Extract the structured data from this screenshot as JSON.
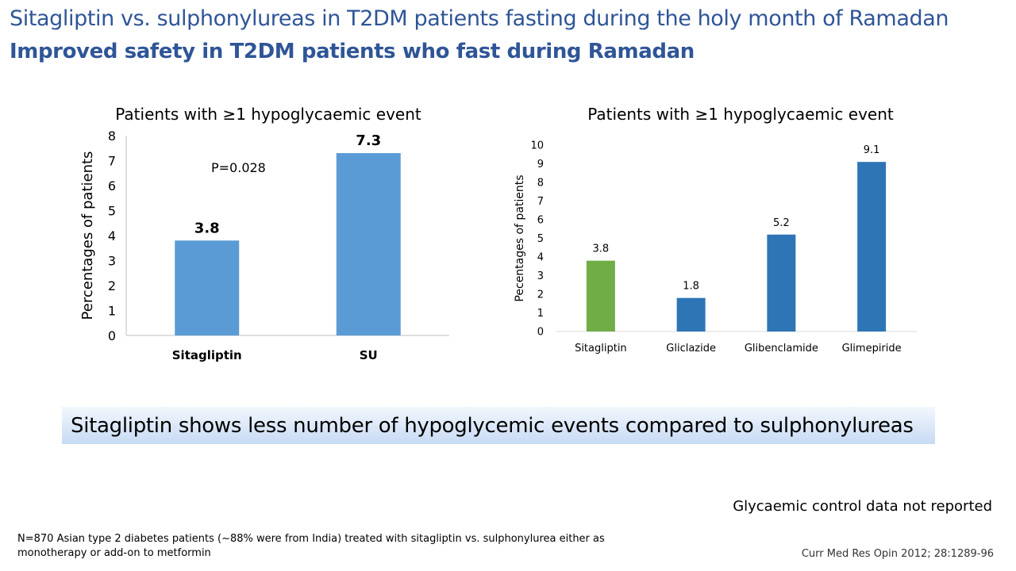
{
  "slide": {
    "title": "Sitagliptin vs. sulphonylureas in T2DM patients fasting during the holy month of Ramadan",
    "subtitle": "Improved safety in T2DM patients who fast during Ramadan",
    "conclusion": "Sitagliptin shows less number of hypoglycemic events compared to sulphonylureas",
    "note": "Glycaemic control data not reported",
    "footnote": "N=870 Asian type 2 diabetes patients (~88% were from India) treated with sitagliptin vs. sulphonylurea either as monotherapy  or add-on to metformin",
    "citation": "Curr Med Res Opin 2012; 28:1289-96"
  },
  "chart_data": [
    {
      "type": "bar",
      "title": "Patients with ≥1 hypoglycaemic event",
      "ylabel": "Percentages of patients",
      "xlabel": "",
      "categories": [
        "Sitagliptin",
        "SU"
      ],
      "values": [
        3.8,
        7.3
      ],
      "value_labels": [
        "3.8",
        "7.3"
      ],
      "ylim": [
        0,
        8
      ],
      "yticks": [
        "0",
        "1",
        "2",
        "3",
        "4",
        "5",
        "6",
        "7",
        "8"
      ],
      "annotation": "P=0.028",
      "bar_colors": [
        "#5B9BD5",
        "#5B9BD5"
      ],
      "grid": false
    },
    {
      "type": "bar",
      "title": "Patients with ≥1 hypoglycaemic event",
      "ylabel": "Pecentages  of patients",
      "xlabel": "",
      "categories": [
        "Sitagliptin",
        "Gliclazide",
        "Glibenclamide",
        "Glimepiride"
      ],
      "values": [
        3.8,
        1.8,
        5.2,
        9.1
      ],
      "value_labels": [
        "3.8",
        "1.8",
        "5.2",
        "9.1"
      ],
      "ylim": [
        0,
        10
      ],
      "yticks": [
        "0",
        "1",
        "2",
        "3",
        "4",
        "5",
        "6",
        "7",
        "8",
        "9",
        "10"
      ],
      "bar_colors": [
        "#70AD47",
        "#2E75B6",
        "#2E75B6",
        "#2E75B6"
      ],
      "grid": false
    }
  ]
}
